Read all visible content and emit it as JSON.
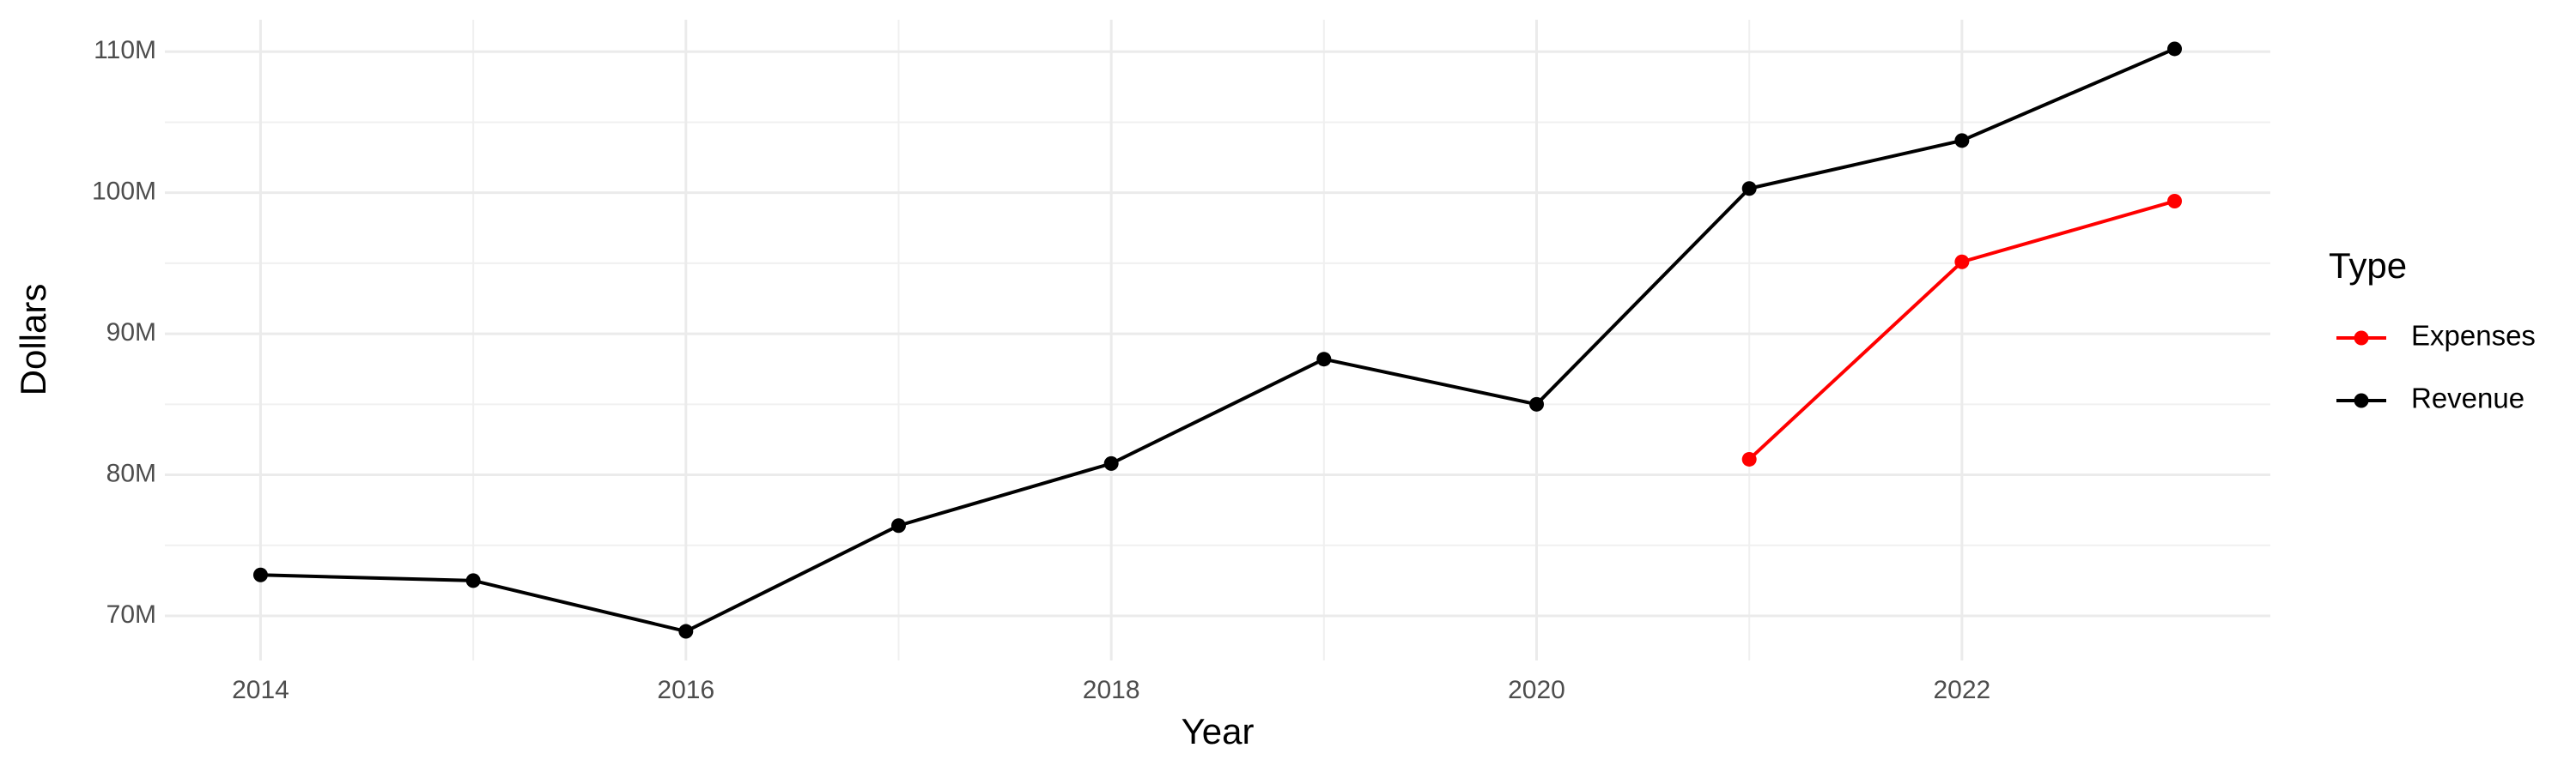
{
  "chart_data": {
    "type": "line",
    "x_label": "Year",
    "y_label": "Dollars",
    "legend_title": "Type",
    "x": [
      2014,
      2015,
      2016,
      2017,
      2018,
      2019,
      2020,
      2021,
      2022,
      2023
    ],
    "series": [
      {
        "name": "Expenses",
        "color": "#ff0000",
        "values": [
          null,
          null,
          null,
          null,
          null,
          null,
          null,
          81100000,
          95100000,
          99400000
        ]
      },
      {
        "name": "Revenue",
        "color": "#000000",
        "values": [
          72900000,
          72500000,
          68900000,
          76400000,
          80800000,
          88200000,
          85000000,
          100300000,
          103700000,
          110200000
        ]
      }
    ],
    "xlim": [
      2013.55,
      2023.45
    ],
    "xticks": [
      2014,
      2016,
      2018,
      2020,
      2022
    ],
    "ylim": [
      66835000,
      112265000
    ],
    "yticks": [
      {
        "value": 70000000,
        "label": "70M"
      },
      {
        "value": 80000000,
        "label": "80M"
      },
      {
        "value": 90000000,
        "label": "90M"
      },
      {
        "value": 100000000,
        "label": "100M"
      },
      {
        "value": 110000000,
        "label": "110M"
      }
    ],
    "grid": true,
    "legend": "right"
  }
}
